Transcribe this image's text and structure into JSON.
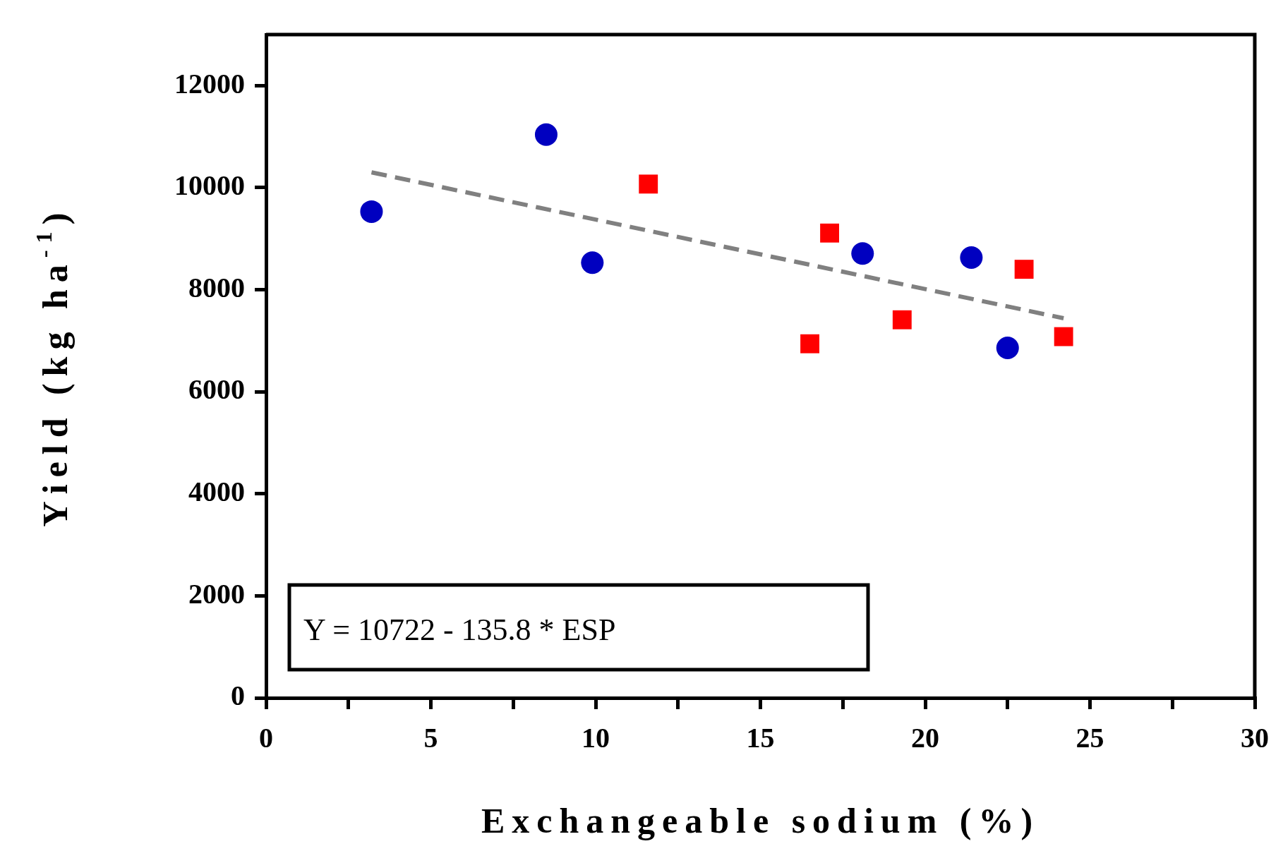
{
  "chart_data": {
    "type": "scatter",
    "xlabel": "Exchangeable sodium (%)",
    "ylabel": "Yield (kg ha$^{-1}$)",
    "xlim": [
      0,
      30
    ],
    "xticks": [
      0,
      {
        "value": 2.5,
        "label": null
      },
      5,
      {
        "value": 7.5,
        "label": null
      },
      10,
      {
        "value": 12.5,
        "label": null
      },
      15,
      {
        "value": 17.5,
        "label": null
      },
      20,
      {
        "value": 22.5,
        "label": null
      },
      25,
      {
        "value": 27.5,
        "label": null
      },
      30
    ],
    "ylim": [
      0,
      13000
    ],
    "yticks": [
      0,
      2000,
      4000,
      6000,
      8000,
      10000,
      12000
    ],
    "grid": false,
    "legend": false,
    "annotations": [
      "Y = 10722 - 135.8 * ESP"
    ],
    "series": [
      {
        "marker": "circle",
        "color": "#0000c0",
        "x": [
          3.2,
          8.5,
          9.9,
          18.1,
          21.4,
          22.5
        ],
        "values": [
          9530,
          11040,
          8530,
          8710,
          8630,
          6860
        ]
      },
      {
        "marker": "square",
        "color": "#ff0000",
        "x": [
          11.6,
          16.5,
          17.1,
          19.3,
          23.0,
          24.2
        ],
        "values": [
          10070,
          6940,
          9110,
          7410,
          8400,
          7080
        ]
      },
      {
        "type": "line",
        "line_style": "dashed",
        "marker": "none",
        "color": "#808080",
        "x": [
          3.2,
          24.2
        ],
        "values": [
          10300,
          7440
        ]
      }
    ]
  }
}
